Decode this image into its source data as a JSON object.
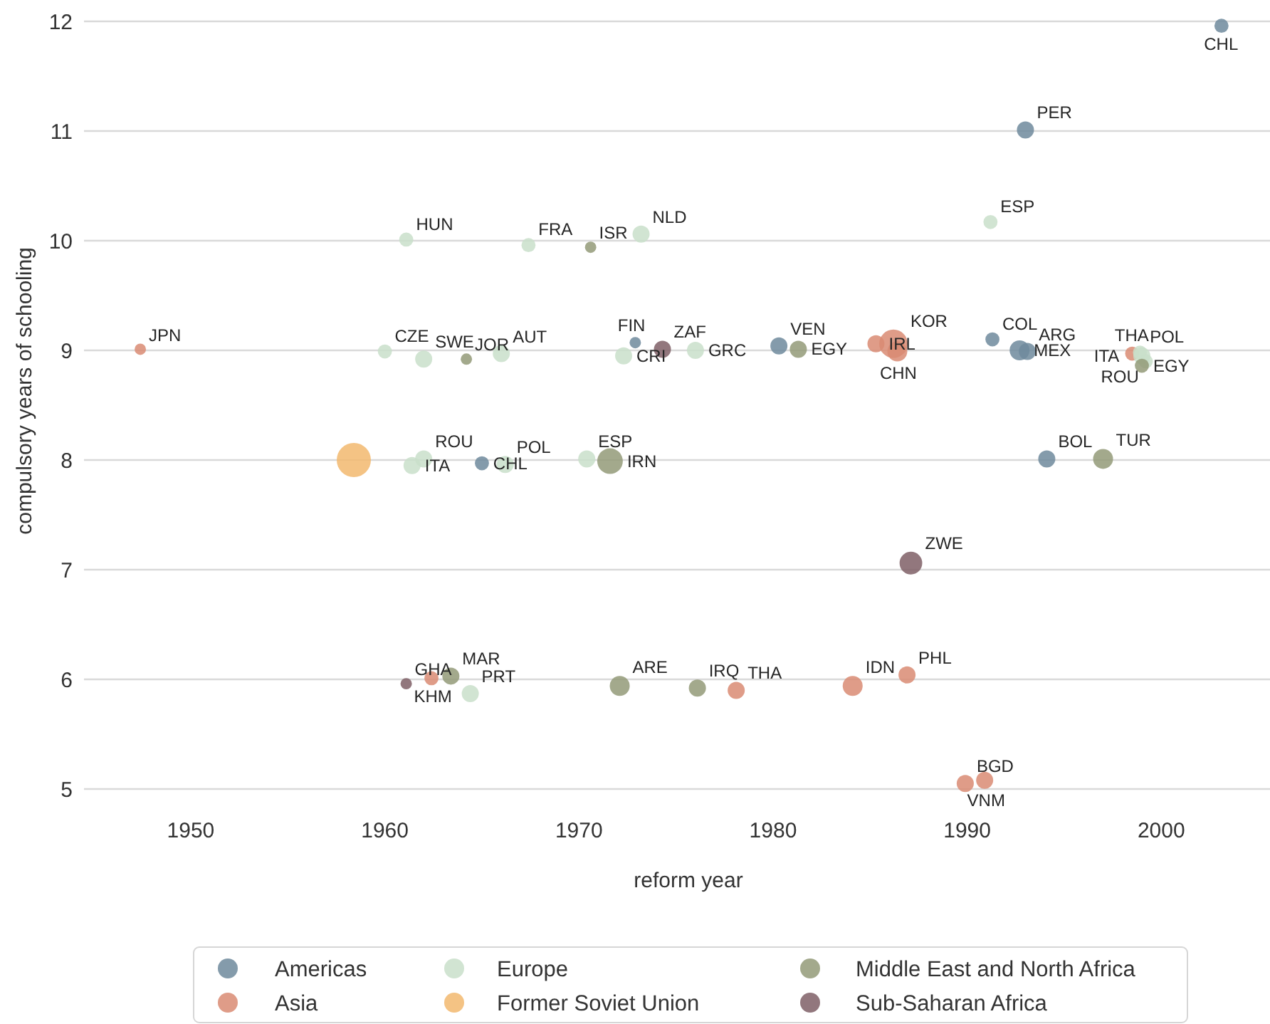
{
  "chart_data": {
    "type": "bubble",
    "xlabel": "reform year",
    "ylabel": "compulsory years of schooling",
    "xlim": [
      1944.5,
      2005.6
    ],
    "ylim": [
      5,
      12
    ],
    "xticks": [
      1950,
      1960,
      1970,
      1980,
      1990,
      2000
    ],
    "yticks": [
      5,
      6,
      7,
      8,
      9,
      10,
      11,
      12
    ],
    "grid": "y",
    "legend": "bottom",
    "series": [
      {
        "name": "Americas",
        "color": "#6e8a9c",
        "x": [
          2003.1,
          1993.0,
          1972.9,
          1965.0,
          1980.3,
          1991.3,
          1992.7,
          1993.1,
          1994.1
        ],
        "values": [
          11.96,
          11.01,
          9.07,
          7.97,
          9.04,
          9.1,
          9.0,
          8.99,
          8.01
        ],
        "sizes": [
          0.17,
          0.25,
          0.11,
          0.17,
          0.25,
          0.17,
          0.34,
          0.25,
          0.25
        ]
      },
      {
        "name": "Asia",
        "color": "#d98b73",
        "x": [
          1947.4,
          1985.3,
          1986.2,
          1986.4,
          1998.5,
          1984.1,
          1986.9,
          1989.9,
          1990.9,
          1962.4,
          1978.1
        ],
        "values": [
          9.01,
          9.06,
          9.06,
          8.99,
          8.97,
          5.94,
          6.04,
          5.05,
          5.08,
          6.01,
          5.9
        ],
        "sizes": [
          0.11,
          0.25,
          0.69,
          0.34,
          0.17,
          0.34,
          0.25,
          0.25,
          0.25,
          0.17,
          0.25
        ]
      },
      {
        "name": "Europe",
        "color": "#c9dfca",
        "x": [
          1961.1,
          1967.4,
          1973.2,
          1991.2,
          1960.0,
          1962.0,
          1966.0,
          1972.3,
          1976.0,
          1962.0,
          1961.4,
          1966.2,
          1970.4,
          1998.9,
          1999.0,
          1999.2,
          1964.4
        ],
        "values": [
          10.01,
          9.96,
          10.06,
          10.17,
          8.99,
          8.92,
          8.97,
          8.95,
          9.0,
          8.01,
          7.95,
          7.96,
          8.01,
          8.98,
          8.95,
          8.9,
          5.87
        ],
        "sizes": [
          0.17,
          0.17,
          0.25,
          0.17,
          0.17,
          0.25,
          0.25,
          0.25,
          0.25,
          0.25,
          0.25,
          0.25,
          0.25,
          0.17,
          0.25,
          0.17,
          0.25
        ]
      },
      {
        "name": "Former Soviet Union",
        "color": "#f2b96e",
        "x": [
          1958.4
        ],
        "values": [
          8.0
        ],
        "sizes": [
          1
        ]
      },
      {
        "name": "Middle East and North Africa",
        "color": "#939a78",
        "x": [
          1970.6,
          1964.2,
          1971.6,
          1981.3,
          1997.0,
          1963.4,
          1972.1,
          1976.1,
          1999.0
        ],
        "values": [
          9.94,
          8.92,
          7.99,
          9.01,
          8.01,
          6.03,
          5.94,
          5.92,
          8.86
        ],
        "sizes": [
          0.11,
          0.11,
          0.56,
          0.25,
          0.34,
          0.25,
          0.34,
          0.25,
          0.17
        ]
      },
      {
        "name": "Sub-Saharan Africa",
        "color": "#7f5f66",
        "x": [
          1974.3,
          1987.1,
          1961.1
        ],
        "values": [
          9.01,
          7.06,
          5.96
        ],
        "sizes": [
          0.25,
          0.44,
          0.11
        ]
      }
    ],
    "annotations": [
      {
        "text": "CHL",
        "x": 2003.1,
        "y": 11.96
      },
      {
        "text": "PER",
        "x": 1993.0,
        "y": 11.01
      },
      {
        "text": "NLD",
        "x": 1973.2,
        "y": 10.06
      },
      {
        "text": "FRA",
        "x": 1967.4,
        "y": 9.96
      },
      {
        "text": "ISR",
        "x": 1970.6,
        "y": 9.94
      },
      {
        "text": "HUN",
        "x": 1961.1,
        "y": 10.01
      },
      {
        "text": "ESP",
        "x": 1991.2,
        "y": 10.17
      },
      {
        "text": "JPN",
        "x": 1947.4,
        "y": 9.01
      },
      {
        "text": "JOR",
        "x": 1964.2,
        "y": 8.92
      },
      {
        "text": "AUT",
        "x": 1966.0,
        "y": 8.97
      },
      {
        "text": "ZAF",
        "x": 1974.3,
        "y": 9.01
      },
      {
        "text": "GRC",
        "x": 1976.0,
        "y": 9.0
      },
      {
        "text": "VEN",
        "x": 1980.3,
        "y": 9.04
      },
      {
        "text": "EGY",
        "x": 1981.3,
        "y": 9.01
      },
      {
        "text": "CZE",
        "x": 1960.0,
        "y": 8.99
      },
      {
        "text": "SWE",
        "x": 1962.0,
        "y": 8.92
      },
      {
        "text": "FIN",
        "x": 1972.9,
        "y": 9.07
      },
      {
        "text": "CRI",
        "x": 1972.3,
        "y": 8.95
      },
      {
        "text": "KOR",
        "x": 1986.2,
        "y": 9.06
      },
      {
        "text": "IRL",
        "x": 1985.3,
        "y": 9.06
      },
      {
        "text": "CHN",
        "x": 1986.4,
        "y": 8.99
      },
      {
        "text": "COL",
        "x": 1991.3,
        "y": 9.1
      },
      {
        "text": "MEX",
        "x": 1992.7,
        "y": 9.0
      },
      {
        "text": "ARG",
        "x": 1993.1,
        "y": 8.99
      },
      {
        "text": "POL",
        "x": 1998.9,
        "y": 8.98
      },
      {
        "text": "EGY",
        "x": 1999.0,
        "y": 8.86
      },
      {
        "text": "ITA",
        "x": 1999.0,
        "y": 8.95
      },
      {
        "text": "THA",
        "x": 1998.5,
        "y": 8.97
      },
      {
        "text": "ROU",
        "x": 1999.2,
        "y": 8.9
      },
      {
        "text": "TUR",
        "x": 1997.0,
        "y": 8.01
      },
      {
        "text": "BOL",
        "x": 1994.1,
        "y": 8.01
      },
      {
        "text": "POL",
        "x": 1966.2,
        "y": 7.96
      },
      {
        "text": "ROU",
        "x": 1962.0,
        "y": 8.01
      },
      {
        "text": "ITA",
        "x": 1961.4,
        "y": 7.95
      },
      {
        "text": "CHL",
        "x": 1965.0,
        "y": 7.97
      },
      {
        "text": "ESP",
        "x": 1970.4,
        "y": 8.01
      },
      {
        "text": "IRN",
        "x": 1971.6,
        "y": 7.99
      },
      {
        "text": "ZWE",
        "x": 1987.1,
        "y": 7.06
      },
      {
        "text": "GHA",
        "x": 1961.1,
        "y": 5.96
      },
      {
        "text": "KHM",
        "x": 1962.4,
        "y": 6.01
      },
      {
        "text": "MAR",
        "x": 1963.4,
        "y": 6.03
      },
      {
        "text": "PRT",
        "x": 1964.4,
        "y": 5.87
      },
      {
        "text": "ARE",
        "x": 1972.1,
        "y": 5.94
      },
      {
        "text": "IRQ",
        "x": 1976.1,
        "y": 5.92
      },
      {
        "text": "THA",
        "x": 1978.1,
        "y": 5.9
      },
      {
        "text": "IDN",
        "x": 1984.1,
        "y": 5.94
      },
      {
        "text": "PHL",
        "x": 1986.9,
        "y": 6.04
      },
      {
        "text": "BGD",
        "x": 1989.9,
        "y": 5.05
      },
      {
        "text": "VNM",
        "x": 1990.9,
        "y": 5.08
      }
    ]
  }
}
